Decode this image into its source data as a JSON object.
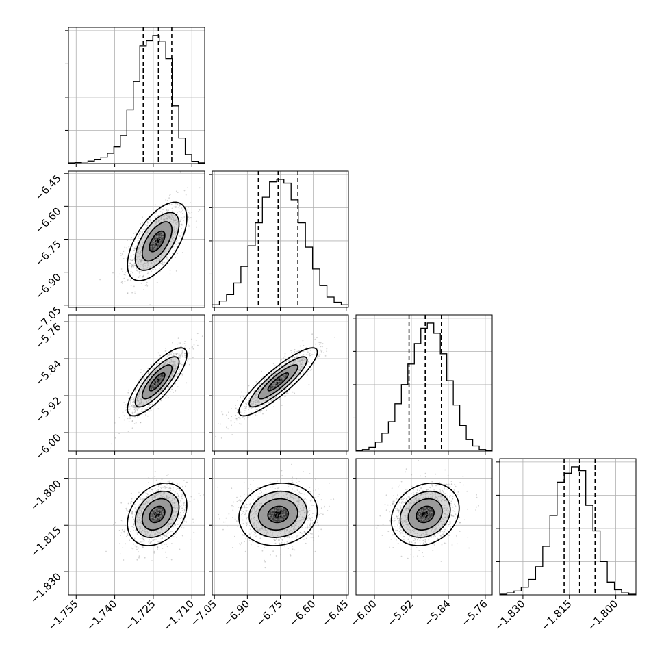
{
  "chart_data": {
    "type": "corner",
    "title": "",
    "parameters": [
      {
        "ticks": [
          -1.755,
          -1.74,
          -1.725,
          -1.71
        ],
        "tick_labels": [
          "−1.755",
          "−1.740",
          "−1.725",
          "−1.710"
        ],
        "range": [
          -1.758,
          -1.705
        ],
        "quantiles": [
          -1.7289,
          -1.723,
          -1.7178
        ],
        "hist_values": [
          0.005,
          0.008,
          0.012,
          0.02,
          0.03,
          0.05,
          0.08,
          0.13,
          0.22,
          0.42,
          0.64,
          0.92,
          0.96,
          1.0,
          0.95,
          0.82,
          0.45,
          0.2,
          0.07,
          0.018,
          0.006
        ],
        "mean": -1.7235,
        "sd": 0.0055
      },
      {
        "ticks": [
          -7.05,
          -6.9,
          -6.75,
          -6.6,
          -6.45
        ],
        "tick_labels": [
          "−7.05",
          "−6.90",
          "−6.75",
          "−6.60",
          "−6.45"
        ],
        "range": [
          -7.06,
          -6.44
        ],
        "quantiles": [
          -6.85,
          -6.76,
          -6.67
        ],
        "hist_values": [
          0.02,
          0.05,
          0.1,
          0.19,
          0.32,
          0.48,
          0.66,
          0.86,
          0.98,
          1.0,
          0.97,
          0.84,
          0.66,
          0.47,
          0.3,
          0.17,
          0.08,
          0.04,
          0.02
        ],
        "mean": -6.76,
        "sd": 0.085
      },
      {
        "ticks": [
          -6.0,
          -5.92,
          -5.84,
          -5.76
        ],
        "tick_labels": [
          "−6.00",
          "−5.92",
          "−5.84",
          "−5.76"
        ],
        "range": [
          -6.04,
          -5.745
        ],
        "quantiles": [
          -5.925,
          -5.89,
          -5.855
        ],
        "hist_values": [
          0.005,
          0.012,
          0.03,
          0.07,
          0.14,
          0.23,
          0.37,
          0.52,
          0.68,
          0.84,
          0.96,
          1.0,
          0.92,
          0.76,
          0.55,
          0.36,
          0.2,
          0.09,
          0.04,
          0.012,
          0.005
        ],
        "mean": -5.89,
        "sd": 0.035
      },
      {
        "ticks": [
          -1.83,
          -1.815,
          -1.8
        ],
        "tick_labels": [
          "−1.830",
          "−1.815",
          "−1.800"
        ],
        "range": [
          -1.8375,
          -1.7935
        ],
        "quantiles": [
          -1.8167,
          -1.8117,
          -1.8067
        ],
        "hist_values": [
          0.005,
          0.015,
          0.03,
          0.06,
          0.12,
          0.22,
          0.38,
          0.62,
          0.88,
          0.95,
          1.0,
          0.97,
          0.7,
          0.5,
          0.26,
          0.1,
          0.04,
          0.015,
          0.005
        ],
        "mean": -1.8115,
        "sd": 0.0048
      }
    ],
    "correlations": [
      [
        1,
        0.6,
        0.8,
        0.3
      ],
      [
        0.6,
        1,
        0.88,
        0.1
      ],
      [
        0.8,
        0.88,
        1,
        0.2
      ],
      [
        0.3,
        0.1,
        0.2,
        1
      ]
    ],
    "grid": true,
    "colors": {
      "line": "#000000",
      "grid": "#b0b0b0",
      "scatter": "#9a9a9a"
    }
  }
}
